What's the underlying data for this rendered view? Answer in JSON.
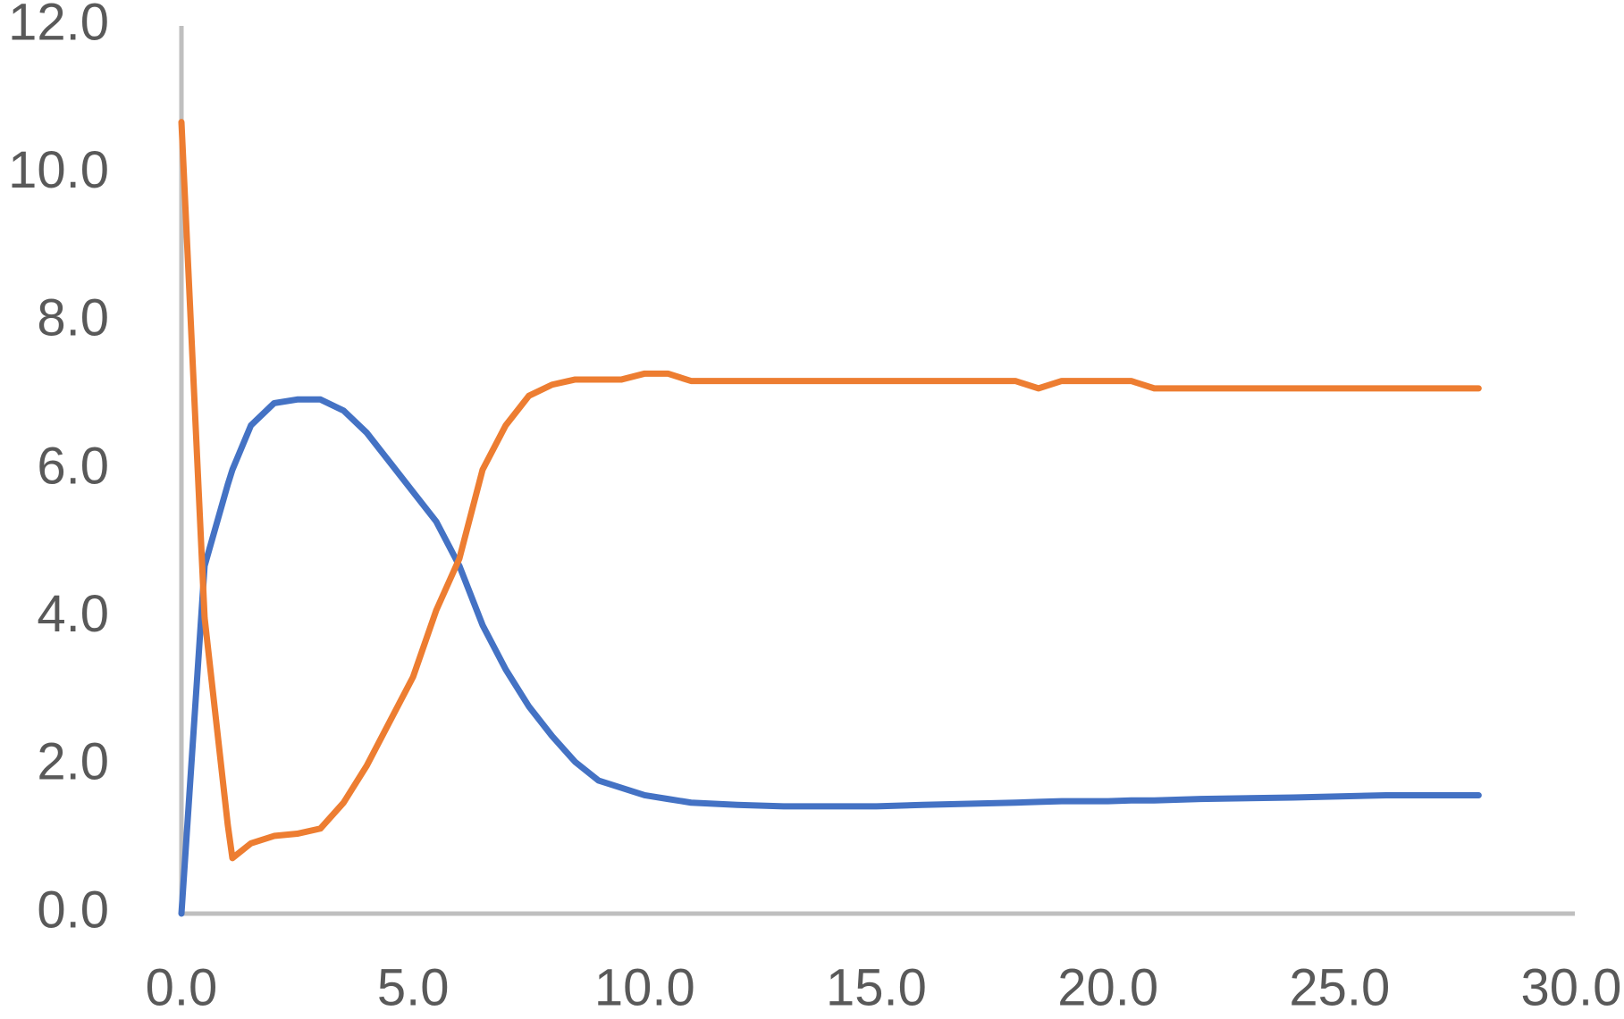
{
  "chart_data": {
    "type": "line",
    "x": [
      0,
      0.5,
      1,
      1.1,
      1.5,
      2,
      2.5,
      3,
      3.5,
      4,
      4.5,
      5,
      5.5,
      6,
      6.5,
      7,
      7.5,
      8,
      8.5,
      9,
      9.5,
      10,
      10.5,
      11,
      12,
      13,
      15,
      16,
      18,
      18.5,
      19,
      20,
      20.5,
      21,
      22,
      24,
      26,
      28
    ],
    "series": [
      {
        "color": "#4472c4",
        "values": [
          0,
          4.7,
          5.8,
          6.0,
          6.6,
          6.9,
          6.95,
          6.95,
          6.8,
          6.5,
          6.1,
          5.7,
          5.3,
          4.7,
          3.9,
          3.3,
          2.8,
          2.4,
          2.05,
          1.8,
          1.7,
          1.6,
          1.55,
          1.5,
          1.47,
          1.45,
          1.45,
          1.47,
          1.5,
          1.51,
          1.52,
          1.52,
          1.53,
          1.53,
          1.55,
          1.57,
          1.6,
          1.6
        ]
      },
      {
        "color": "#ed7d31",
        "values": [
          10.7,
          4.0,
          1.2,
          0.75,
          0.95,
          1.05,
          1.08,
          1.15,
          1.5,
          2.0,
          2.6,
          3.2,
          4.1,
          4.8,
          6.0,
          6.6,
          7.0,
          7.15,
          7.22,
          7.22,
          7.22,
          7.3,
          7.3,
          7.2,
          7.2,
          7.2,
          7.2,
          7.2,
          7.2,
          7.1,
          7.2,
          7.2,
          7.2,
          7.1,
          7.1,
          7.1,
          7.1,
          7.1
        ]
      }
    ],
    "xlim": [
      0,
      30
    ],
    "xticks": [
      {
        "value": 0,
        "label": "0.0"
      },
      {
        "value": 5,
        "label": "5.0"
      },
      {
        "value": 10,
        "label": "10.0"
      },
      {
        "value": 15,
        "label": "15.0"
      },
      {
        "value": 20,
        "label": "20.0"
      },
      {
        "value": 25,
        "label": "25.0"
      },
      {
        "value": 30,
        "label": "30.0"
      }
    ],
    "ylim": [
      0,
      12
    ],
    "yticks": [
      {
        "value": 0,
        "label": "0.0"
      },
      {
        "value": 2,
        "label": "2.0"
      },
      {
        "value": 4,
        "label": "4.0"
      },
      {
        "value": 6,
        "label": "6.0"
      },
      {
        "value": 8,
        "label": "8.0"
      },
      {
        "value": 10,
        "label": "10.0"
      },
      {
        "value": 12,
        "label": "12.0"
      }
    ],
    "grid": false
  }
}
